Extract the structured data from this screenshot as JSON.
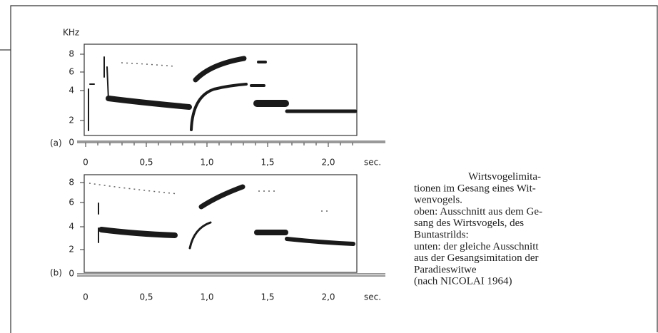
{
  "figure": {
    "y_unit": "KHz",
    "panels": [
      {
        "label": "(a)",
        "yticks": [
          "0",
          "2",
          "4",
          "6",
          "8"
        ],
        "xticks": [
          "0",
          "0,5",
          "1,0",
          "1,5",
          "2,0"
        ],
        "x_unit": "sec."
      },
      {
        "label": "(b)",
        "yticks": [
          "0",
          "2",
          "4",
          "6",
          "8"
        ],
        "xticks": [
          "0",
          "0,5",
          "1,0",
          "1,5",
          "2,0"
        ],
        "x_unit": "sec."
      }
    ]
  },
  "caption": {
    "lines": [
      "Wirtsvogelimita-",
      "tionen im Gesang eines Wit-",
      "wenvogels.",
      "oben: Ausschnitt aus dem Ge-",
      "sang des Wirtsvogels, des",
      "Buntastrilds:",
      "unten: der gleiche Ausschnitt",
      "aus der Gesangsimitation der",
      "Paradieswitwe",
      "(nach NICOLAI 1964)"
    ]
  }
}
